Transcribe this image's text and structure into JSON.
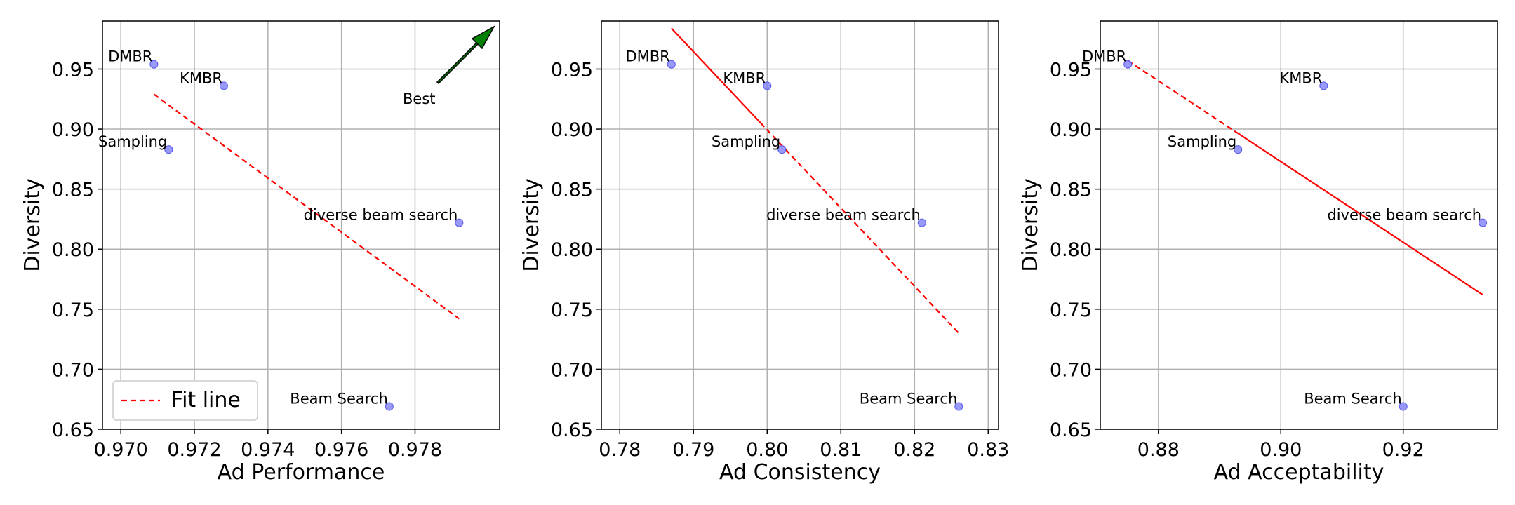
{
  "colors": {
    "point": "#8080f8",
    "point_edge": "#5a5af0",
    "fit_line": "#ff0000",
    "grid": "#b0b0b0",
    "arrow": "#008000"
  },
  "chart_data": [
    {
      "type": "scatter",
      "xlabel": "Ad Performance",
      "ylabel": "Diversity",
      "xlim": [
        0.9695,
        0.9803
      ],
      "ylim": [
        0.65,
        0.99
      ],
      "xticks": [
        "0.970",
        "0.972",
        "0.974",
        "0.976",
        "0.978"
      ],
      "xtick_values": [
        0.97,
        0.972,
        0.974,
        0.976,
        0.978
      ],
      "yticks": [
        "0.65",
        "0.70",
        "0.75",
        "0.80",
        "0.85",
        "0.90",
        "0.95"
      ],
      "ytick_values": [
        0.65,
        0.7,
        0.75,
        0.8,
        0.85,
        0.9,
        0.95
      ],
      "grid": true,
      "points": [
        {
          "label": "DMBR",
          "x": 0.9709,
          "y": 0.954,
          "label_pos": "upper-left"
        },
        {
          "label": "KMBR",
          "x": 0.9728,
          "y": 0.936,
          "label_pos": "upper-left"
        },
        {
          "label": "Sampling",
          "x": 0.9713,
          "y": 0.883,
          "label_pos": "upper-left"
        },
        {
          "label": "diverse beam search",
          "x": 0.9792,
          "y": 0.822,
          "label_pos": "upper-left"
        },
        {
          "label": "Beam Search",
          "x": 0.9773,
          "y": 0.669,
          "label_pos": "upper-left"
        }
      ],
      "fit_line": {
        "x": [
          0.9709,
          0.9792
        ],
        "y": [
          0.929,
          0.742
        ],
        "style": "dashed"
      },
      "legend": {
        "label": "Fit line",
        "position": "lower-left"
      },
      "annotation": {
        "text": "Best",
        "arrow": "up-right",
        "position": "top-right"
      }
    },
    {
      "type": "scatter",
      "xlabel": "Ad Consistency",
      "ylabel": "Diversity",
      "xlim": [
        0.7775,
        0.8314
      ],
      "ylim": [
        0.65,
        0.99
      ],
      "xticks": [
        "0.78",
        "0.79",
        "0.80",
        "0.81",
        "0.82",
        "0.83"
      ],
      "xtick_values": [
        0.78,
        0.79,
        0.8,
        0.81,
        0.82,
        0.83
      ],
      "yticks": [
        "0.65",
        "0.70",
        "0.75",
        "0.80",
        "0.85",
        "0.90",
        "0.95"
      ],
      "ytick_values": [
        0.65,
        0.7,
        0.75,
        0.8,
        0.85,
        0.9,
        0.95
      ],
      "grid": true,
      "points": [
        {
          "label": "DMBR",
          "x": 0.787,
          "y": 0.954,
          "label_pos": "upper-left"
        },
        {
          "label": "KMBR",
          "x": 0.8,
          "y": 0.936,
          "label_pos": "upper-left"
        },
        {
          "label": "Sampling",
          "x": 0.802,
          "y": 0.883,
          "label_pos": "upper-left"
        },
        {
          "label": "diverse beam search",
          "x": 0.821,
          "y": 0.822,
          "label_pos": "upper-left"
        },
        {
          "label": "Beam Search",
          "x": 0.826,
          "y": 0.669,
          "label_pos": "upper-left"
        }
      ],
      "fit_line": {
        "x": [
          0.787,
          0.826
        ],
        "y": [
          0.984,
          0.73
        ],
        "style": "solid-then-dashed"
      }
    },
    {
      "type": "scatter",
      "xlabel": "Ad Acceptability",
      "ylabel": "Diversity",
      "xlim": [
        0.8705,
        0.9354
      ],
      "ylim": [
        0.65,
        0.99
      ],
      "xticks": [
        "0.88",
        "0.90",
        "0.92"
      ],
      "xtick_values": [
        0.88,
        0.9,
        0.92
      ],
      "yticks": [
        "0.65",
        "0.70",
        "0.75",
        "0.80",
        "0.85",
        "0.90",
        "0.95"
      ],
      "ytick_values": [
        0.65,
        0.7,
        0.75,
        0.8,
        0.85,
        0.9,
        0.95
      ],
      "grid": true,
      "points": [
        {
          "label": "DMBR",
          "x": 0.875,
          "y": 0.954,
          "label_pos": "upper-left"
        },
        {
          "label": "KMBR",
          "x": 0.907,
          "y": 0.936,
          "label_pos": "upper-left"
        },
        {
          "label": "Sampling",
          "x": 0.893,
          "y": 0.883,
          "label_pos": "upper-left"
        },
        {
          "label": "diverse beam search",
          "x": 0.933,
          "y": 0.822,
          "label_pos": "upper-left"
        },
        {
          "label": "Beam Search",
          "x": 0.92,
          "y": 0.669,
          "label_pos": "upper-left"
        }
      ],
      "fit_line": {
        "x": [
          0.875,
          0.933
        ],
        "y": [
          0.957,
          0.762
        ],
        "style": "dashed-then-solid"
      }
    }
  ]
}
